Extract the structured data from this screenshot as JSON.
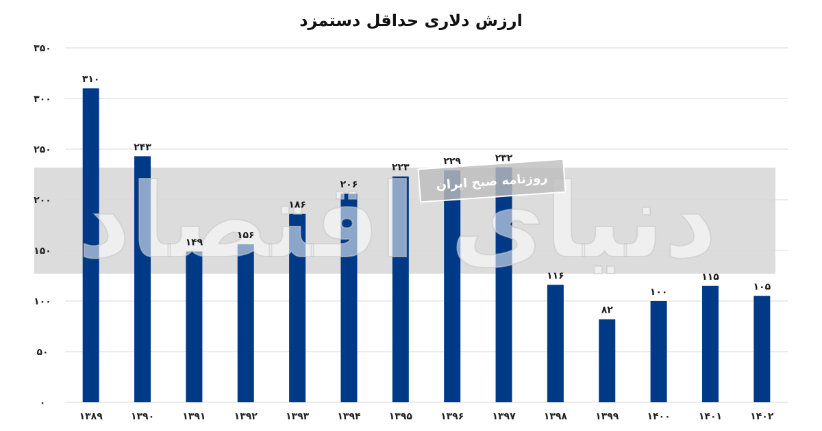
{
  "chart_data": {
    "type": "bar",
    "title": "ارزش دلاری حداقل دستمزد",
    "xlabel": "",
    "ylabel": "",
    "categories": [
      "۱۳۸۹",
      "۱۳۹۰",
      "۱۳۹۱",
      "۱۳۹۲",
      "۱۳۹۳",
      "۱۳۹۴",
      "۱۳۹۵",
      "۱۳۹۶",
      "۱۳۹۷",
      "۱۳۹۸",
      "۱۳۹۹",
      "۱۴۰۰",
      "۱۴۰۱",
      "۱۴۰۲"
    ],
    "values": [
      310,
      243,
      149,
      156,
      186,
      206,
      223,
      229,
      232,
      116,
      82,
      100,
      115,
      105
    ],
    "value_labels": [
      "۳۱۰",
      "۲۴۳",
      "۱۴۹",
      "۱۵۶",
      "۱۸۶",
      "۲۰۶",
      "۲۲۳",
      "۲۲۹",
      "۲۳۲",
      "۱۱۶",
      "۸۲",
      "۱۰۰",
      "۱۱۵",
      "۱۰۵"
    ],
    "ylim": [
      0,
      350
    ],
    "yticks": [
      0,
      50,
      100,
      150,
      200,
      250,
      300,
      350
    ],
    "ytick_labels": [
      "۰",
      "۵۰",
      "۱۰۰",
      "۱۵۰",
      "۲۰۰",
      "۲۵۰",
      "۳۰۰",
      "۳۵۰"
    ],
    "grid": true,
    "bar_color": "#003a87",
    "grid_color": "#d9d9d9"
  },
  "watermark": {
    "brand_text": "دنیای اقتصاد",
    "strip_text": "روزنامه صبح ایران",
    "band_color": "#d6d6d6"
  }
}
